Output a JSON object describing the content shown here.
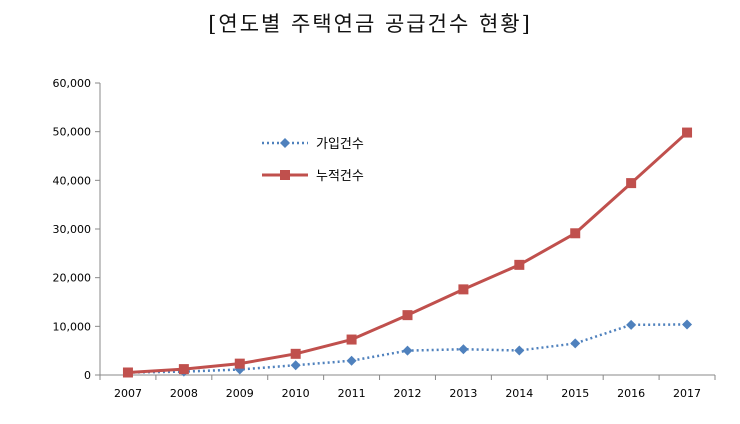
{
  "chart_data": {
    "type": "line",
    "title": "[연도별 주택연금 공급건수 현황]",
    "x": [
      "2007",
      "2008",
      "2009",
      "2010",
      "2011",
      "2012",
      "2013",
      "2014",
      "2015",
      "2016",
      "2017"
    ],
    "series": [
      {
        "name": "가입건수",
        "values": [
          515,
          695,
          1124,
          2016,
          2936,
          5013,
          5296,
          5039,
          6486,
          10309,
          10386
        ],
        "color": "#4f81bd",
        "style": "dotted",
        "marker": "diamond"
      },
      {
        "name": "누적건수",
        "values": [
          515,
          1210,
          2334,
          4350,
          7286,
          12299,
          17595,
          22634,
          29120,
          39429,
          49815
        ],
        "color": "#c0504d",
        "style": "solid",
        "marker": "square"
      }
    ],
    "ylim": [
      0,
      60000
    ],
    "yticks": [
      "0",
      "10,000",
      "20,000",
      "30,000",
      "40,000",
      "50,000",
      "60,000"
    ],
    "grid": false,
    "legend_position": "inside-top-left"
  }
}
